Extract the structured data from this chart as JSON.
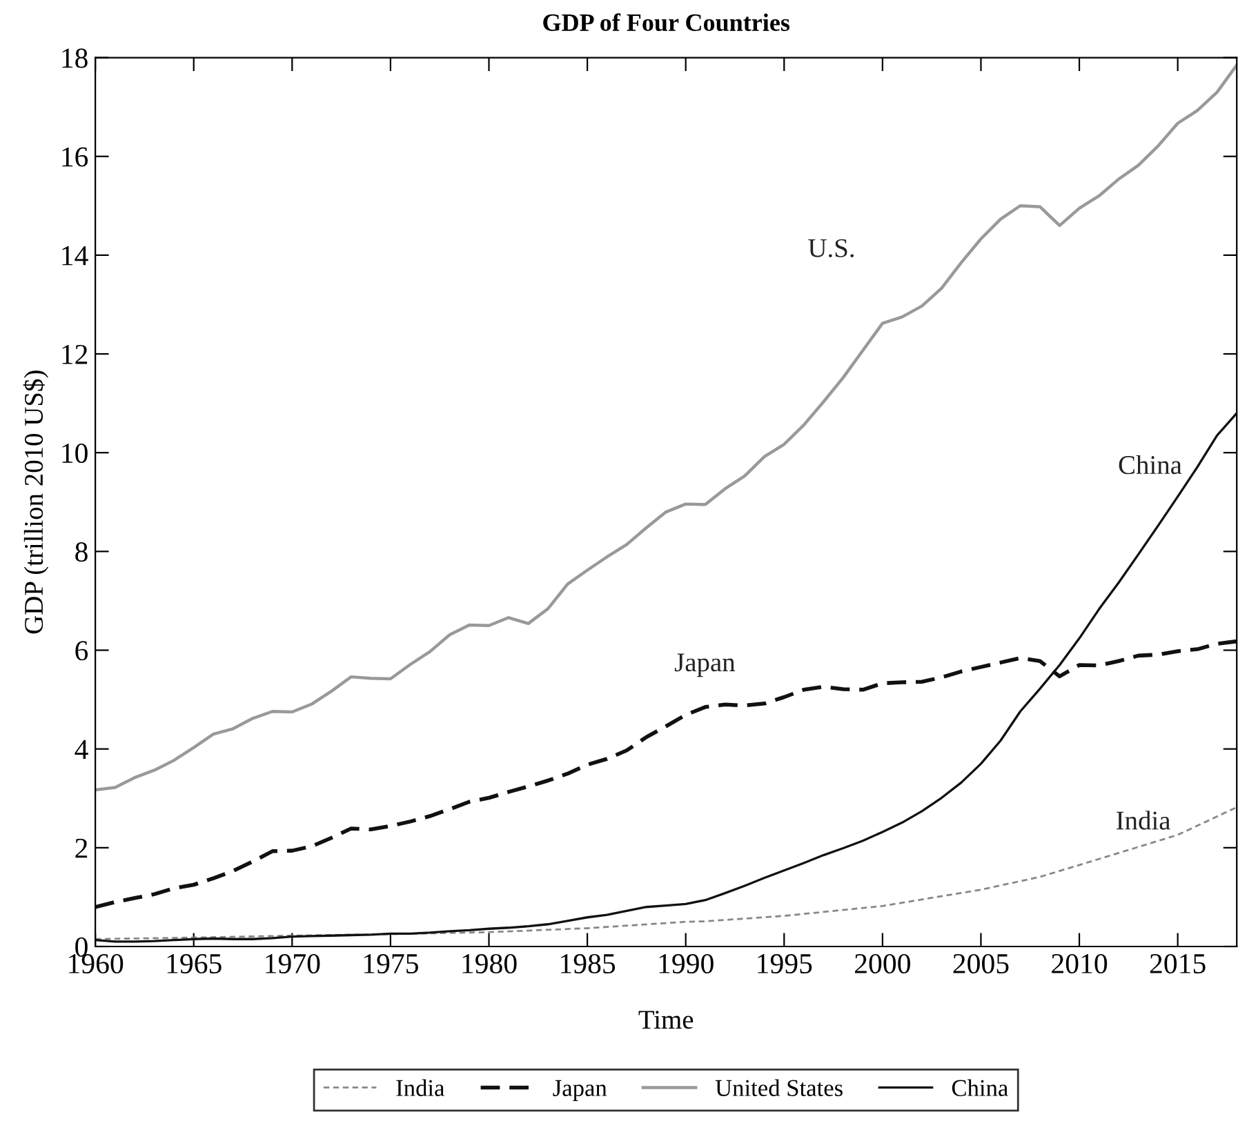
{
  "chart_data": {
    "type": "line",
    "title": "GDP of Four Countries",
    "xlabel": "Time",
    "ylabel": "GDP (trillion 2010 US$)",
    "xlim": [
      1960,
      2018
    ],
    "ylim": [
      0,
      18
    ],
    "xticks": [
      1960,
      1965,
      1970,
      1975,
      1980,
      1985,
      1990,
      1995,
      2000,
      2005,
      2010,
      2015
    ],
    "yticks": [
      0,
      2,
      4,
      6,
      8,
      10,
      12,
      14,
      16,
      18
    ],
    "grid": false,
    "legend": "bottom",
    "marker": "none",
    "series": [
      {
        "name": "India",
        "color": "#888888",
        "line_style": "dashed",
        "x": [
          1960,
          1965,
          1970,
          1975,
          1980,
          1985,
          1990,
          1991,
          1995,
          2000,
          2005,
          2008,
          2010,
          2015,
          2018
        ],
        "values": [
          0.15,
          0.18,
          0.22,
          0.25,
          0.29,
          0.37,
          0.5,
          0.51,
          0.62,
          0.82,
          1.15,
          1.41,
          1.65,
          2.26,
          2.82
        ]
      },
      {
        "name": "Japan",
        "color": "#111111",
        "line_style": "dashed",
        "x": [
          1960,
          1961,
          1962,
          1963,
          1964,
          1965,
          1966,
          1967,
          1968,
          1969,
          1970,
          1971,
          1972,
          1973,
          1974,
          1975,
          1976,
          1977,
          1978,
          1979,
          1980,
          1981,
          1982,
          1983,
          1984,
          1985,
          1986,
          1987,
          1988,
          1989,
          1990,
          1991,
          1992,
          1993,
          1994,
          1995,
          1996,
          1997,
          1998,
          1999,
          2000,
          2001,
          2002,
          2003,
          2004,
          2005,
          2006,
          2007,
          2008,
          2009,
          2010,
          2011,
          2012,
          2013,
          2014,
          2015,
          2016,
          2017,
          2018
        ],
        "values": [
          0.8,
          0.9,
          0.98,
          1.06,
          1.18,
          1.25,
          1.38,
          1.53,
          1.72,
          1.93,
          1.94,
          2.03,
          2.2,
          2.39,
          2.37,
          2.44,
          2.53,
          2.64,
          2.78,
          2.93,
          3.01,
          3.13,
          3.24,
          3.36,
          3.5,
          3.68,
          3.8,
          3.97,
          4.24,
          4.46,
          4.69,
          4.85,
          4.9,
          4.88,
          4.92,
          5.05,
          5.2,
          5.26,
          5.21,
          5.2,
          5.33,
          5.35,
          5.36,
          5.45,
          5.57,
          5.66,
          5.75,
          5.84,
          5.78,
          5.47,
          5.7,
          5.69,
          5.78,
          5.89,
          5.91,
          5.98,
          6.02,
          6.13,
          6.18
        ]
      },
      {
        "name": "United States",
        "color": "#999999",
        "line_style": "solid",
        "x": [
          1960,
          1961,
          1962,
          1963,
          1964,
          1965,
          1966,
          1967,
          1968,
          1969,
          1970,
          1971,
          1972,
          1973,
          1974,
          1975,
          1976,
          1977,
          1978,
          1979,
          1980,
          1981,
          1982,
          1983,
          1984,
          1985,
          1986,
          1987,
          1988,
          1989,
          1990,
          1991,
          1992,
          1993,
          1994,
          1995,
          1996,
          1997,
          1998,
          1999,
          2000,
          2001,
          2002,
          2003,
          2004,
          2005,
          2006,
          2007,
          2008,
          2009,
          2010,
          2011,
          2012,
          2013,
          2014,
          2015,
          2016,
          2017,
          2018
        ],
        "values": [
          3.17,
          3.22,
          3.42,
          3.57,
          3.77,
          4.03,
          4.3,
          4.41,
          4.62,
          4.76,
          4.75,
          4.91,
          5.17,
          5.46,
          5.43,
          5.42,
          5.71,
          5.97,
          6.31,
          6.51,
          6.5,
          6.66,
          6.54,
          6.84,
          7.34,
          7.62,
          7.89,
          8.14,
          8.48,
          8.8,
          8.96,
          8.95,
          9.27,
          9.53,
          9.92,
          10.17,
          10.56,
          11.03,
          11.52,
          12.07,
          12.62,
          12.75,
          12.97,
          13.33,
          13.85,
          14.33,
          14.73,
          15.0,
          14.98,
          14.6,
          14.95,
          15.2,
          15.54,
          15.82,
          16.21,
          16.67,
          16.93,
          17.3,
          17.85
        ]
      },
      {
        "name": "China",
        "color": "#111111",
        "line_style": "solid",
        "x": [
          1960,
          1961,
          1962,
          1963,
          1964,
          1965,
          1966,
          1967,
          1968,
          1969,
          1970,
          1971,
          1972,
          1973,
          1974,
          1975,
          1976,
          1977,
          1978,
          1979,
          1980,
          1981,
          1982,
          1983,
          1984,
          1985,
          1986,
          1987,
          1988,
          1989,
          1990,
          1991,
          1992,
          1993,
          1994,
          1995,
          1996,
          1997,
          1998,
          1999,
          2000,
          2001,
          2002,
          2003,
          2004,
          2005,
          2006,
          2007,
          2008,
          2009,
          2010,
          2011,
          2012,
          2013,
          2014,
          2015,
          2016,
          2017,
          2018
        ],
        "values": [
          0.13,
          0.1,
          0.1,
          0.11,
          0.13,
          0.15,
          0.16,
          0.15,
          0.15,
          0.17,
          0.2,
          0.21,
          0.22,
          0.23,
          0.24,
          0.26,
          0.26,
          0.28,
          0.31,
          0.33,
          0.36,
          0.38,
          0.41,
          0.45,
          0.52,
          0.59,
          0.64,
          0.72,
          0.8,
          0.83,
          0.86,
          0.94,
          1.08,
          1.23,
          1.39,
          1.54,
          1.69,
          1.85,
          1.99,
          2.14,
          2.32,
          2.51,
          2.74,
          3.01,
          3.32,
          3.7,
          4.17,
          4.76,
          5.22,
          5.7,
          6.24,
          6.83,
          7.37,
          7.94,
          8.52,
          9.11,
          9.71,
          10.35,
          10.8
        ]
      }
    ],
    "annotations": [
      "U.S.",
      "China",
      "Japan",
      "India"
    ]
  }
}
